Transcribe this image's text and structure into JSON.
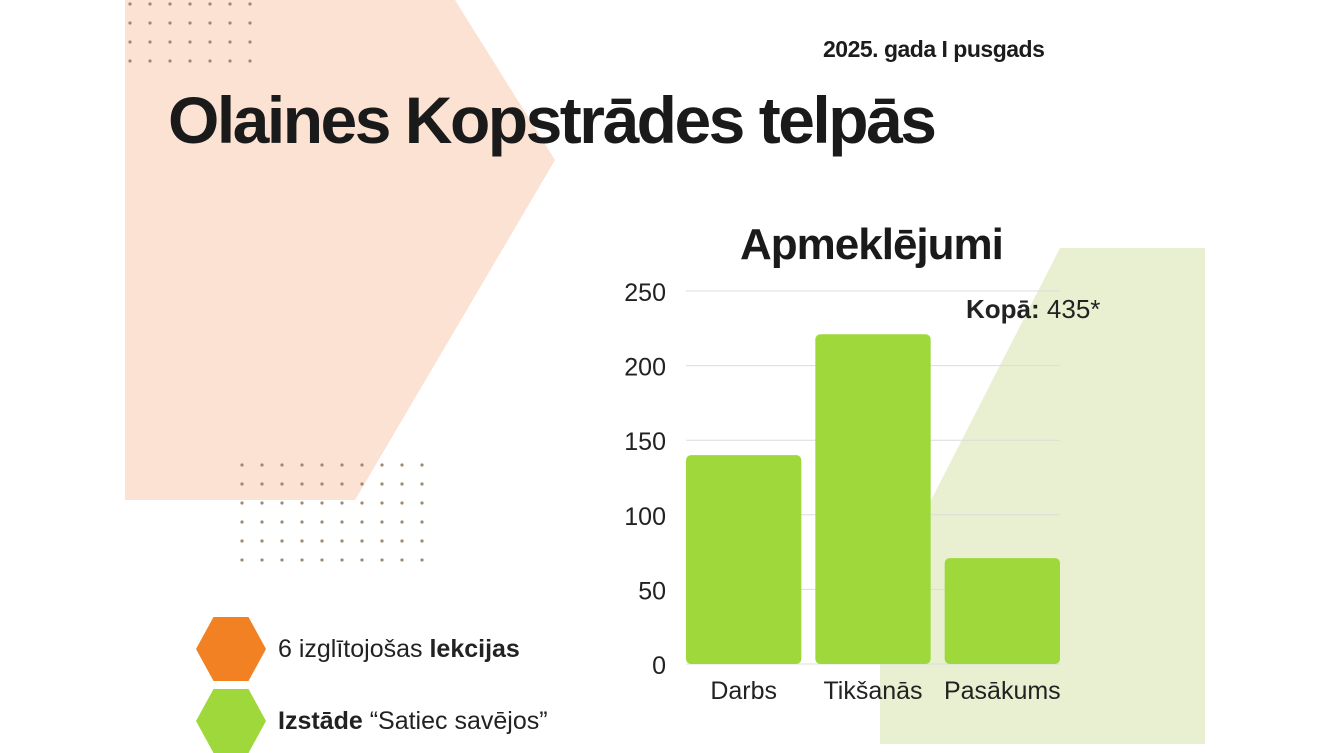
{
  "header": {
    "period": "2025. gada I pusgads",
    "title": "Olaines Kopstrādes telpās"
  },
  "chart_data": {
    "type": "bar",
    "title": "Apmeklējumi",
    "categories": [
      "Darbs",
      "Tikšanās",
      "Pasākums"
    ],
    "values": [
      140,
      221,
      71
    ],
    "ylim": [
      0,
      250
    ],
    "yticks": [
      "0",
      "50",
      "100",
      "150",
      "200",
      "250"
    ],
    "grid": true,
    "bar_color": "#9ed83b",
    "annotation": {
      "label": "Kopā:",
      "value": "435*"
    }
  },
  "legend": [
    {
      "text": "6 izglītojošas ",
      "bold": "lekcijas",
      "bold_first": false,
      "color": "#f28124"
    },
    {
      "text": " “Satiec savējos”",
      "bold": "Izstāde",
      "bold_first": true,
      "color": "#9ed83b"
    }
  ],
  "colors": {
    "peach_shape": "#fbe2d3",
    "green_shape": "#e9f0d1",
    "dots": "#9e8a6f"
  }
}
